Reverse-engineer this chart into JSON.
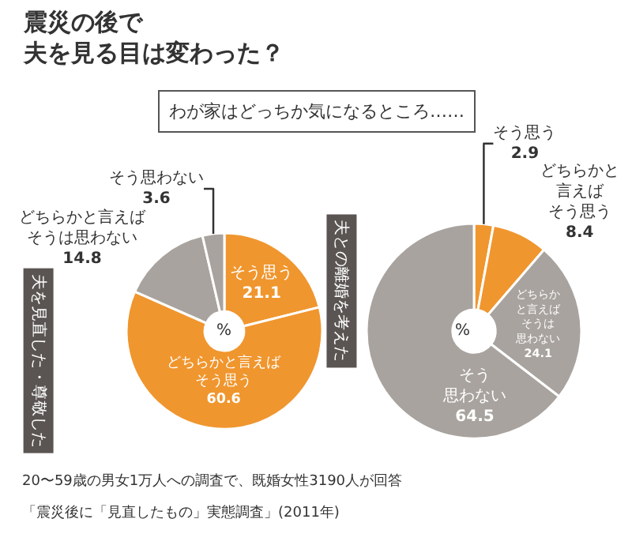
{
  "chart_data": [
    {
      "type": "donut",
      "title": "夫を見直した・尊敬した",
      "categories": [
        "そう思う",
        "どちらかと言えばそう思う",
        "どちらかと言えばそうは思わない",
        "そう思わない"
      ],
      "values": [
        21.1,
        60.6,
        14.8,
        3.6
      ],
      "colors": [
        "#f0962e",
        "#f0962e",
        "#a8a39e",
        "#a8a39e"
      ],
      "data_labels": true,
      "annotations": [
        "震災の後で夫を見る目は変わった？",
        "わが家はどっちか気になるところ……",
        "%",
        "20〜59歳の男女1万人への調査で、既婚女性3190人が回答",
        "「震災後に「見直したもの」実態調査」(2011年)"
      ]
    },
    {
      "type": "donut",
      "title": "夫との離婚を考えた",
      "categories": [
        "そう思う",
        "どちらかと言えばそう思う",
        "どちらかと言えばそうは思わない",
        "そう思わない"
      ],
      "values": [
        2.9,
        8.4,
        24.1,
        64.5
      ],
      "colors": [
        "#f0962e",
        "#f0962e",
        "#a8a39e",
        "#a8a39e"
      ],
      "data_labels": true,
      "annotations": [
        "%"
      ]
    }
  ]
}
